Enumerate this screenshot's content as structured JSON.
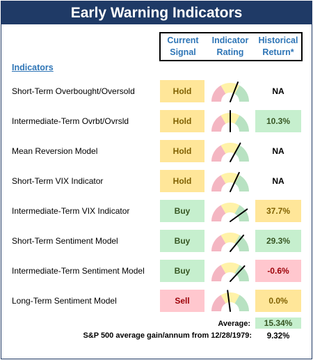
{
  "title": "Early Warning Indicators",
  "columns": {
    "signal": [
      "Current",
      "Signal"
    ],
    "rating": [
      "Indicator",
      "Rating"
    ],
    "return": [
      "Historical",
      "Return*"
    ]
  },
  "indicators_heading": "Indicators",
  "colors": {
    "title_bg": "#1f3a66",
    "header_text": "#2e75b6",
    "hold_bg": "#ffe699",
    "buy_bg": "#c6efce",
    "sell_bg": "#ffc7ce",
    "gauge_low": "#f4b6c2",
    "gauge_mid": "#fff2a8",
    "gauge_high": "#b8e2c2"
  },
  "rows": [
    {
      "label": "Short-Term Overbought/Oversold",
      "signal": "Hold",
      "signal_class": "hold",
      "rating": 0.62,
      "return": "NA",
      "return_class": "na"
    },
    {
      "label": "Intermediate-Term Ovrbt/Ovrsld",
      "signal": "Hold",
      "signal_class": "hold",
      "rating": 0.5,
      "return": "10.3%",
      "return_class": "pos"
    },
    {
      "label": "Mean Reversion Model",
      "signal": "Hold",
      "signal_class": "hold",
      "rating": 0.66,
      "return": "NA",
      "return_class": "na"
    },
    {
      "label": "Short-Term VIX Indicator",
      "signal": "Hold",
      "signal_class": "hold",
      "rating": 0.64,
      "return": "NA",
      "return_class": "na"
    },
    {
      "label": "Intermediate-Term VIX Indicator",
      "signal": "Buy",
      "signal_class": "buy",
      "rating": 0.8,
      "return": "37.7%",
      "return_class": "hi"
    },
    {
      "label": "Short-Term Sentiment Model",
      "signal": "Buy",
      "signal_class": "buy",
      "rating": 0.72,
      "return": "29.3%",
      "return_class": "pos"
    },
    {
      "label": "Intermediate-Term Sentiment Model",
      "signal": "Buy",
      "signal_class": "buy",
      "rating": 0.74,
      "return": "-0.6%",
      "return_class": "neg"
    },
    {
      "label": "Long-Term Sentiment Model",
      "signal": "Sell",
      "signal_class": "sell",
      "rating": 0.46,
      "return": "0.0%",
      "return_class": "mid"
    }
  ],
  "average": {
    "label": "Average:",
    "value": "15.34%"
  },
  "sp500": {
    "label": "S&P 500 average gain/annum from 12/28/1979:",
    "value": "9.32%"
  }
}
